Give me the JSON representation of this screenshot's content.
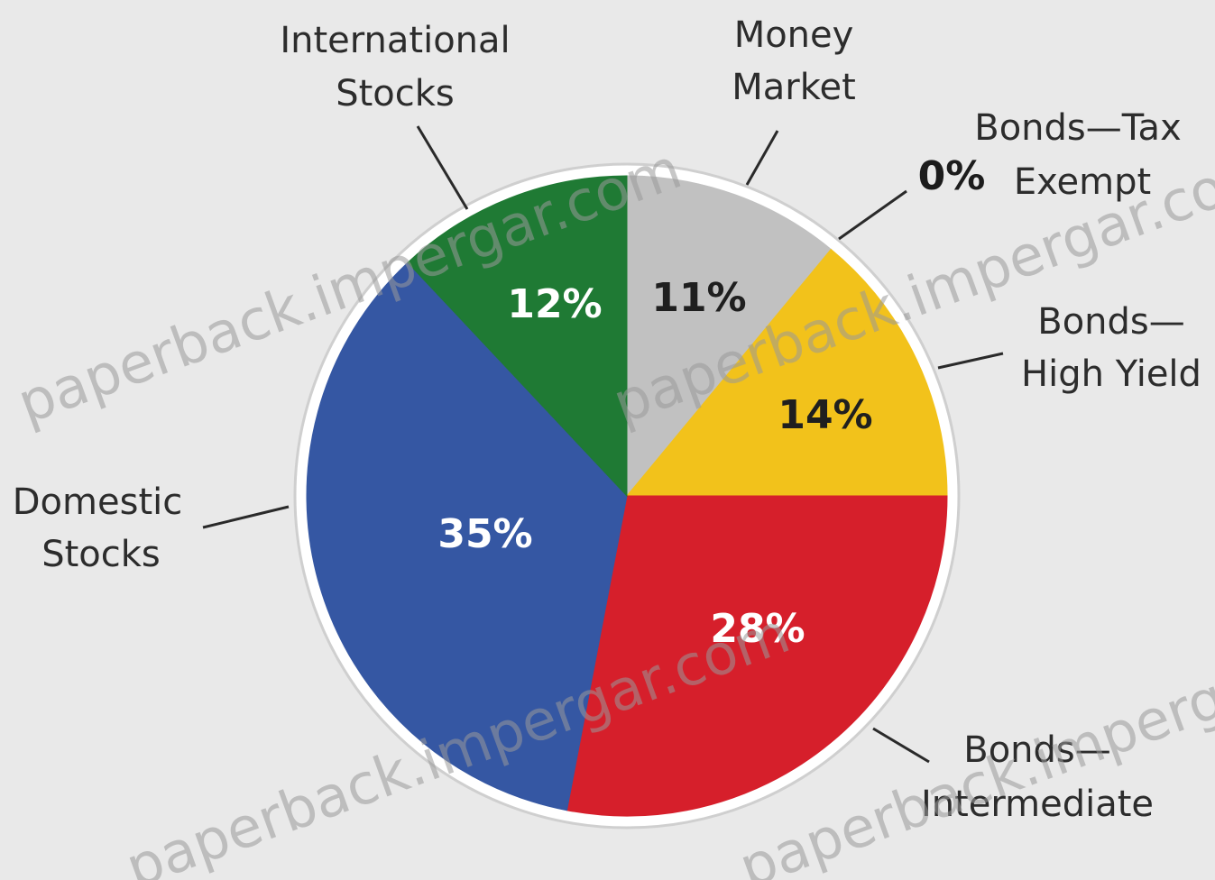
{
  "chart_data": {
    "type": "pie",
    "slices": [
      {
        "label_lines": [
          "Money",
          "Market"
        ],
        "value": 11,
        "value_label": "11%",
        "color": "#c1c1c1",
        "text_color": "#1f1f1f"
      },
      {
        "label_lines": [
          "Bonds—Tax",
          "Exempt"
        ],
        "value": 0,
        "value_label": "0%",
        "color": "#d6dc8a",
        "text_color": "#1f1f1f"
      },
      {
        "label_lines": [
          "Bonds—",
          "High Yield"
        ],
        "value": 14,
        "value_label": "14%",
        "color": "#f2c21b",
        "text_color": "#1f1f1f"
      },
      {
        "label_lines": [
          "Bonds—",
          "Intermediate"
        ],
        "value": 28,
        "value_label": "28%",
        "color": "#d61f2b",
        "text_color": "#ffffff"
      },
      {
        "label_lines": [
          "Domestic",
          "Stocks"
        ],
        "value": 35,
        "value_label": "35%",
        "color": "#3557a3",
        "text_color": "#ffffff"
      },
      {
        "label_lines": [
          "International",
          "Stocks"
        ],
        "value": 12,
        "value_label": "12%",
        "color": "#1f7a34",
        "text_color": "#ffffff"
      }
    ]
  },
  "watermark": {
    "text": "paperback.impergar.com"
  }
}
